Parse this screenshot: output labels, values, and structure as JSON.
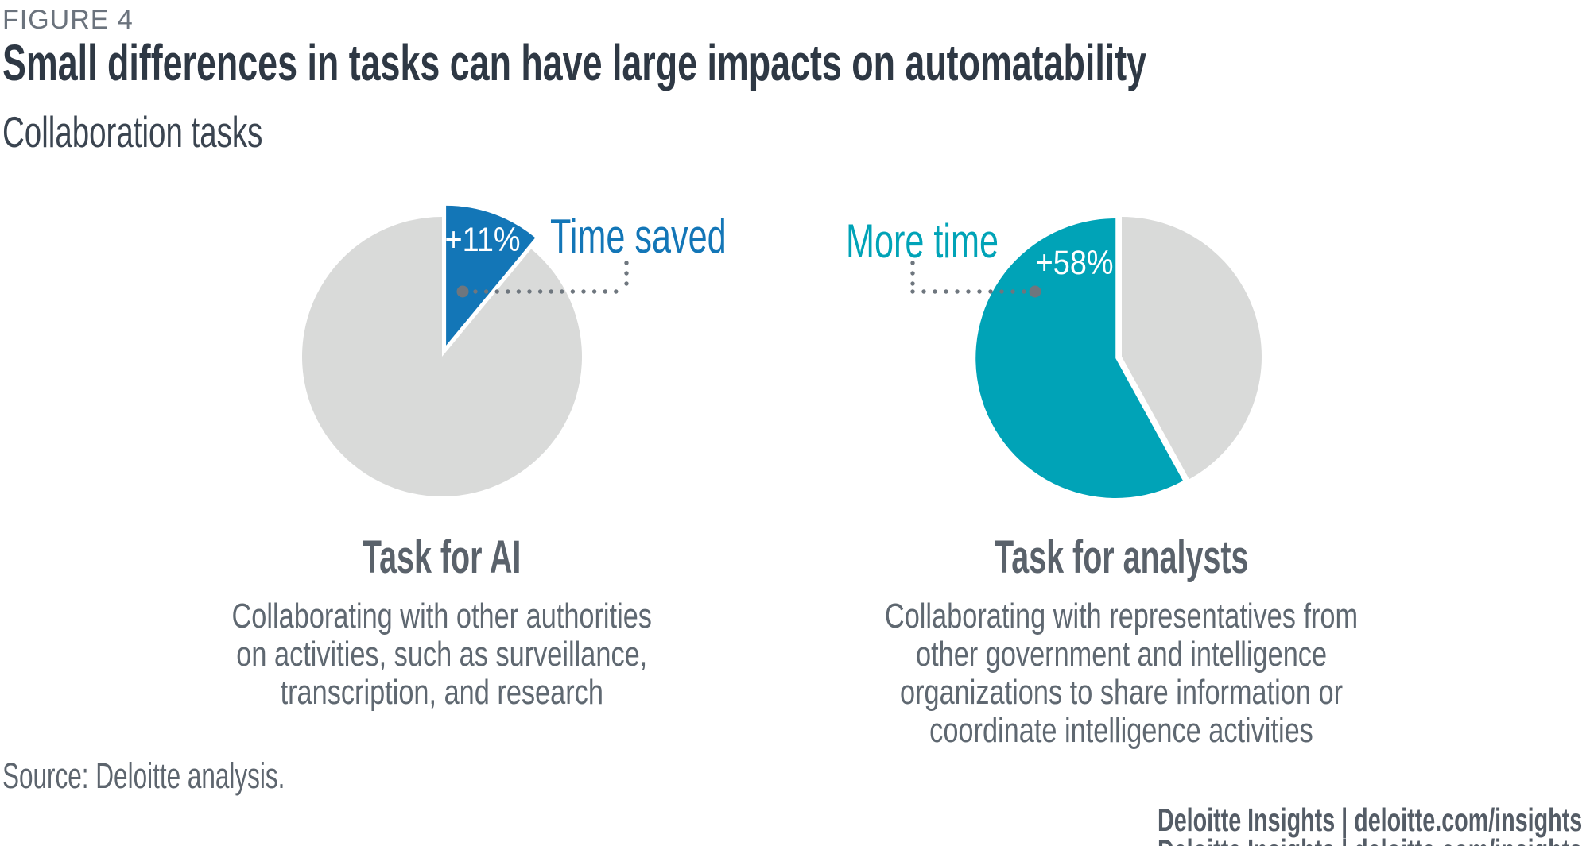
{
  "figure_label": "FIGURE 4",
  "title": "Small differences in tasks can have large impacts on automatability",
  "subtitle": "Collaboration tasks",
  "source": "Source: Deloitte analysis.",
  "footer": "Deloitte Insights | deloitte.com/insights",
  "colors": {
    "highlight_blue": "#1376b7",
    "highlight_teal": "#00a3b7",
    "pie_gray": "#d9dad9",
    "leader_dot_gray": "#6e767e",
    "title_dark": "#2e3844",
    "text_gray": "#5f6871"
  },
  "chart_data": [
    {
      "type": "pie",
      "name": "task-for-ai",
      "heading": "Task for AI",
      "description": "Collaborating with other authorities\non activities, such as surveillance,\ntranscription, and research",
      "callout": "Time saved",
      "highlight_label": "+11%",
      "highlight_pct": 11,
      "remainder_pct": 89,
      "highlight_color": "#1376b7",
      "remainder_color": "#d9dad9",
      "highlight_position": "clockwise-from-top"
    },
    {
      "type": "pie",
      "name": "task-for-analysts",
      "heading": "Task for analysts",
      "description": "Collaborating with representatives from\nother government and intelligence\norganizations to share information or\ncoordinate intelligence activities",
      "callout": "More time",
      "highlight_label": "+58%",
      "highlight_pct": 58,
      "remainder_pct": 42,
      "highlight_color": "#00a3b7",
      "remainder_color": "#d9dad9",
      "highlight_position": "counterclockwise-from-top"
    }
  ]
}
